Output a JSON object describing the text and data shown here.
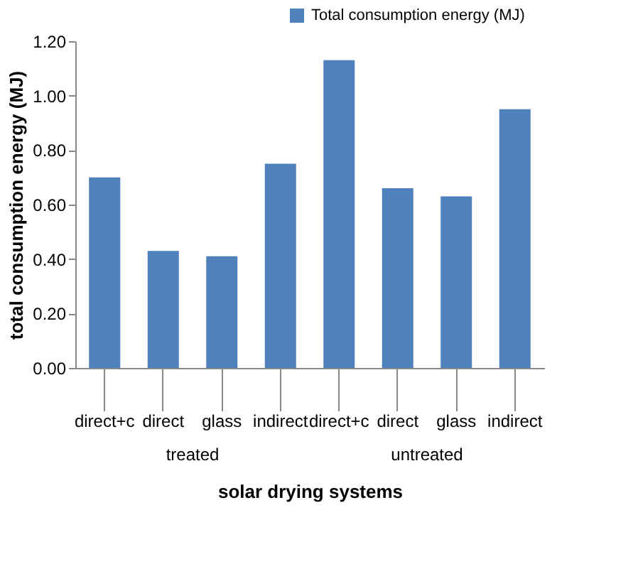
{
  "chart_data": {
    "type": "bar",
    "ylabel": "total consumption energy (MJ)",
    "xlabel": "solar drying systems",
    "categories": [
      "direct+c",
      "direct",
      "glass",
      "indirect",
      "direct+c",
      "direct",
      "glass",
      "indirect"
    ],
    "series": [
      {
        "name": "Total consumption energy (MJ)",
        "color": "#4f81bd",
        "values": [
          0.7,
          0.43,
          0.41,
          0.75,
          1.13,
          0.66,
          0.63,
          0.95
        ]
      }
    ],
    "annotations": [
      "treated",
      "untreated"
    ],
    "ylim": [
      0,
      1.2
    ],
    "yticks": [
      {
        "value": 0,
        "label": "0.00"
      },
      {
        "value": 0.2,
        "label": "0.20"
      },
      {
        "value": 0.4,
        "label": "0.40"
      },
      {
        "value": 0.6,
        "label": "0.60"
      },
      {
        "value": 0.8,
        "label": "0.80"
      },
      {
        "value": 1.0,
        "label": "1.00"
      },
      {
        "value": 1.2,
        "label": "1.20"
      }
    ],
    "grid": false,
    "legend": "top right"
  }
}
